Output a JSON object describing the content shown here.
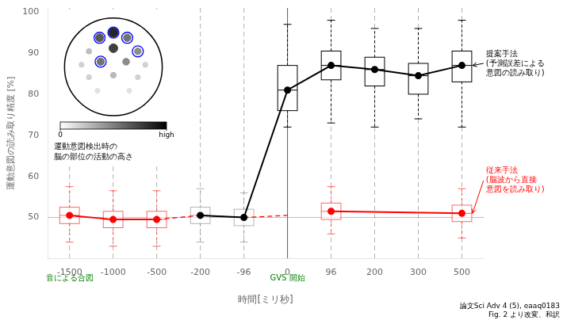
{
  "chart_data": [
    {
      "type": "line",
      "xlabel": "時間[ミリ秒]",
      "ylabel": "運動意図の読み取り精度 [%]",
      "categories": [
        "-1500",
        "-1000",
        "-500",
        "-200",
        "-96",
        "0",
        "96",
        "200",
        "300",
        "500"
      ],
      "ylim": [
        40,
        101
      ],
      "yticks": [
        50,
        60,
        70,
        80,
        90,
        100
      ],
      "grid": false,
      "series": [
        {
          "type": "box",
          "color": "black",
          "medians": [
            null,
            null,
            null,
            null,
            null,
            81.0,
            87.0,
            86.0,
            84.5,
            87.0
          ],
          "q1": [
            null,
            null,
            null,
            null,
            null,
            76.0,
            83.5,
            82.0,
            80.0,
            83.0
          ],
          "q3": [
            null,
            null,
            null,
            null,
            null,
            87.0,
            90.5,
            89.0,
            87.5,
            90.5
          ],
          "whisker_low": [
            null,
            null,
            null,
            null,
            null,
            72.0,
            73.0,
            72.0,
            74.0,
            72.0
          ],
          "whisker_high": [
            null,
            null,
            null,
            null,
            null,
            97.0,
            98.0,
            96.0,
            96.0,
            98.0
          ]
        },
        {
          "type": "box",
          "color": "red",
          "medians": [
            50.5,
            49.5,
            49.5,
            null,
            null,
            null,
            null,
            null,
            null,
            null
          ],
          "q1": [
            48.5,
            47.5,
            47.5,
            null,
            null,
            null,
            null,
            null,
            null,
            null
          ],
          "q3": [
            52.5,
            51.5,
            51.5,
            null,
            null,
            null,
            null,
            null,
            null,
            null
          ],
          "whisker_low": [
            44.0,
            43.0,
            43.0,
            null,
            null,
            null,
            null,
            null,
            null,
            null
          ],
          "whisker_high": [
            57.5,
            56.5,
            56.5,
            null,
            null,
            null,
            null,
            null,
            null,
            null
          ]
        },
        {
          "type": "box",
          "color": "red",
          "medians": [
            null,
            null,
            null,
            null,
            null,
            null,
            51.5,
            null,
            null,
            51.0
          ],
          "q1": [
            null,
            null,
            null,
            null,
            null,
            null,
            49.5,
            null,
            null,
            49.0
          ],
          "q3": [
            null,
            null,
            null,
            null,
            null,
            null,
            53.5,
            null,
            null,
            53.0
          ],
          "whisker_low": [
            null,
            null,
            null,
            null,
            null,
            null,
            46.0,
            null,
            null,
            45.0
          ],
          "whisker_high": [
            null,
            null,
            null,
            null,
            null,
            null,
            57.5,
            null,
            null,
            57.0
          ]
        },
        {
          "type": "box",
          "color": "gray",
          "medians": [
            null,
            null,
            null,
            50.5,
            50.0,
            null,
            null,
            null,
            null,
            null
          ],
          "q1": [
            null,
            null,
            null,
            48.5,
            48.0,
            null,
            null,
            null,
            null,
            null
          ],
          "q3": [
            null,
            null,
            null,
            52.5,
            52.0,
            null,
            null,
            null,
            null,
            null
          ],
          "whisker_low": [
            null,
            null,
            null,
            44.0,
            44.0,
            null,
            null,
            null,
            null,
            null
          ],
          "whisker_high": [
            null,
            null,
            null,
            57.0,
            56.0,
            null,
            null,
            null,
            null,
            null
          ]
        },
        {
          "type": "line",
          "color": "black",
          "marker": "circle",
          "line_style": "solid",
          "values": [
            null,
            null,
            null,
            50.5,
            50.0,
            81.0,
            87.0,
            86.0,
            84.5,
            87.0
          ]
        },
        {
          "type": "line",
          "color": "red",
          "marker": "circle",
          "line_style": "solid",
          "values": [
            50.5,
            49.5,
            49.5,
            null,
            null,
            null,
            null,
            null,
            null,
            null
          ]
        },
        {
          "type": "line",
          "color": "red",
          "marker": "circle",
          "line_style": "solid",
          "values": [
            null,
            null,
            null,
            null,
            null,
            null,
            51.5,
            null,
            null,
            51.0
          ]
        },
        {
          "type": "line",
          "color": "red",
          "marker": "none",
          "line_style": "dashed",
          "values": [
            null,
            null,
            49.5,
            50.5,
            50.0,
            50.5,
            null,
            null,
            null,
            null
          ]
        }
      ],
      "vlines": [
        {
          "x": "-1500",
          "color": "gray",
          "line_style": "dashed"
        },
        {
          "x": "-1000",
          "color": "gray",
          "line_style": "dashed"
        },
        {
          "x": "-500",
          "color": "gray",
          "line_style": "dashed"
        },
        {
          "x": "-200",
          "color": "gray",
          "line_style": "dashed"
        },
        {
          "x": "-96",
          "color": "gray",
          "line_style": "dashed"
        },
        {
          "x": "96",
          "color": "gray",
          "line_style": "dashed"
        },
        {
          "x": "200",
          "color": "gray",
          "line_style": "dashed"
        },
        {
          "x": "300",
          "color": "gray",
          "line_style": "dashed"
        },
        {
          "x": "500",
          "color": "gray",
          "line_style": "dashed"
        },
        {
          "x": "0",
          "color": "green",
          "line_style": "solid"
        }
      ],
      "hlines": [
        {
          "y": 50.0,
          "color": "gray",
          "line_style": "solid"
        }
      ],
      "annotations": [
        {
          "text": "音による合図",
          "x": "-1500",
          "color": "green"
        },
        {
          "text": "GVS 開始",
          "x": "0",
          "color": "green"
        },
        {
          "text": [
            "提案手法",
            "(予測誤差による",
            "意図の読み取り)"
          ],
          "x": "500",
          "y": 87.5,
          "arrow_y": 87.0,
          "color": "black"
        },
        {
          "text": [
            "従来手法",
            "(脳波から直接",
            "意図を読み取り)"
          ],
          "x": "500",
          "y": 59.0,
          "arrow_y": 51.0,
          "color": "red"
        }
      ],
      "footnote": [
        "論文Sci Adv 4 (5), eaaq0183",
        "Fig. 2 より改変、和訳"
      ]
    },
    {
      "type": "scatter",
      "title": [
        "運動意図検出時の",
        "脳の部位の活動の高さ"
      ],
      "x": [
        0.5,
        0.37,
        0.63,
        0.27,
        0.5,
        0.73,
        0.2,
        0.38,
        0.62,
        0.8,
        0.27,
        0.5,
        0.73,
        0.35,
        0.65
      ],
      "y": [
        0.83,
        0.78,
        0.78,
        0.65,
        0.68,
        0.65,
        0.52,
        0.55,
        0.55,
        0.52,
        0.4,
        0.42,
        0.4,
        0.27,
        0.27
      ],
      "values": [
        0.85,
        0.65,
        0.55,
        0.25,
        0.75,
        0.45,
        0.18,
        0.55,
        0.45,
        0.18,
        0.18,
        0.28,
        0.18,
        0.12,
        0.12
      ],
      "circled": [
        0,
        1,
        2,
        5,
        7
      ],
      "circle_color": "blue",
      "xlim": [
        0,
        1
      ],
      "ylim": [
        0,
        1
      ],
      "colorbar_range": [
        0,
        1
      ],
      "colorbar_ticks": [
        0,
        {
          "value": 1,
          "label": "high"
        }
      ]
    }
  ]
}
